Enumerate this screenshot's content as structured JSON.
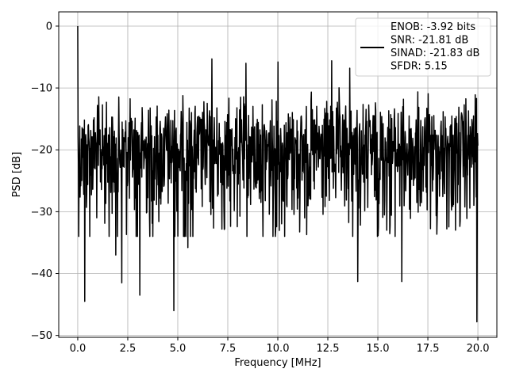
{
  "chart_data": {
    "type": "line",
    "title": "",
    "xlabel": "Frequency [MHz]",
    "ylabel": "PSD [dB]",
    "xlim": [
      -0.95,
      20.95
    ],
    "ylim": [
      -50.3,
      2.3
    ],
    "xticks": [
      0.0,
      2.5,
      5.0,
      7.5,
      10.0,
      12.5,
      15.0,
      17.5,
      20.0
    ],
    "xtick_labels": [
      "0.0",
      "2.5",
      "5.0",
      "7.5",
      "10.0",
      "12.5",
      "15.0",
      "17.5",
      "20.0"
    ],
    "yticks": [
      0,
      -10,
      -20,
      -30,
      -40,
      -50
    ],
    "ytick_labels": [
      "0",
      "−10",
      "−20",
      "−30",
      "−40",
      "−50"
    ],
    "grid": true,
    "legend_position": "top-right",
    "legend_lines": [
      "ENOB: -3.92 bits",
      "SNR: -21.81 dB",
      "SINAD: -21.83 dB",
      "SFDR: 5.15"
    ],
    "series": [
      {
        "color": "#000000",
        "x_range": [
          0.0,
          20.0
        ],
        "points": 1200,
        "peak": {
          "x": 0.0,
          "y": 0.0
        },
        "typical_upper": -10,
        "typical_lower": -28,
        "min_envelope_notes": "random noise floor around -20 dB",
        "notable_dips": [
          {
            "x": 0.35,
            "y": -44.5
          },
          {
            "x": 2.2,
            "y": -41.5
          },
          {
            "x": 3.1,
            "y": -43.5
          },
          {
            "x": 4.8,
            "y": -46.0
          },
          {
            "x": 14.0,
            "y": -41.3
          },
          {
            "x": 16.2,
            "y": -41.3
          },
          {
            "x": 19.95,
            "y": -47.8
          },
          {
            "x": 1.9,
            "y": -37.0
          },
          {
            "x": 5.5,
            "y": -35.8
          },
          {
            "x": 10.0,
            "y": -38.0
          }
        ],
        "notable_peaks": [
          {
            "x": 6.7,
            "y": -5.3
          },
          {
            "x": 10.0,
            "y": -5.8
          },
          {
            "x": 12.7,
            "y": -5.6
          },
          {
            "x": 8.4,
            "y": -6.0
          },
          {
            "x": 13.6,
            "y": -6.8
          }
        ]
      }
    ]
  }
}
